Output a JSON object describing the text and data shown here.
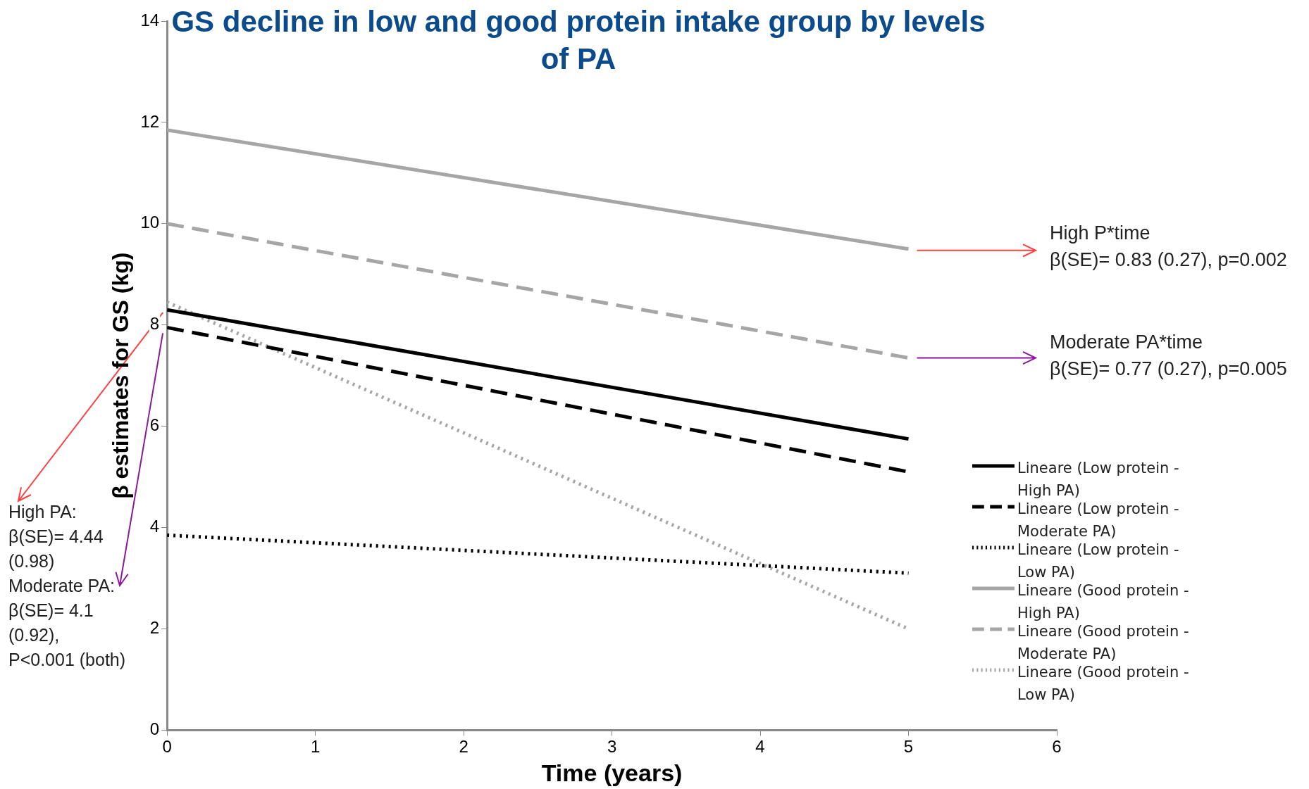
{
  "chart_data": {
    "type": "line",
    "title": "GS decline in low and good protein intake group by levels of PA",
    "xlabel": "Time (years)",
    "ylabel": "β estimates for GS (kg)",
    "xlim": [
      0,
      6
    ],
    "xticks": [
      0,
      1,
      2,
      3,
      4,
      5,
      6
    ],
    "ylim": [
      0,
      14
    ],
    "yticks": [
      0,
      2,
      4,
      6,
      8,
      10,
      12,
      14
    ],
    "grid": false,
    "legend": "right",
    "marker": "none",
    "x": [
      0,
      5
    ],
    "series": [
      {
        "name": "Lineare (Low protein - High PA)",
        "color": "#000000",
        "line_style": "solid",
        "values": [
          8.3,
          5.75
        ]
      },
      {
        "name": "Lineare (Low protein  - Moderate PA)",
        "color": "#000000",
        "line_style": "dashed",
        "values": [
          7.95,
          5.1
        ]
      },
      {
        "name": "Lineare (Low protein - Low PA)",
        "color": "#000000",
        "line_style": "dotted",
        "values": [
          3.85,
          3.1
        ]
      },
      {
        "name": "Lineare (Good protein - High PA)",
        "color": "#a6a6a6",
        "line_style": "solid",
        "values": [
          11.85,
          9.5
        ]
      },
      {
        "name": "Lineare (Good protein - Moderate PA)",
        "color": "#a6a6a6",
        "line_style": "dashed",
        "values": [
          10,
          7.35
        ]
      },
      {
        "name": "Lineare (Good protein - Low PA)",
        "color": "#a6a6a6",
        "line_style": "dotted",
        "values": [
          8.45,
          2
        ]
      }
    ],
    "annotations": [
      "High P*time\nβ(SE)= 0.83 (0.27), p=0.002",
      "Moderate PA*time\nβ(SE)= 0.77 (0.27), p=0.005",
      "High PA:\nβ(SE)= 4.44\n(0.98)\nModerate PA:\nβ(SE)= 4.1\n(0.92),\nP<0.001 (both)"
    ]
  }
}
